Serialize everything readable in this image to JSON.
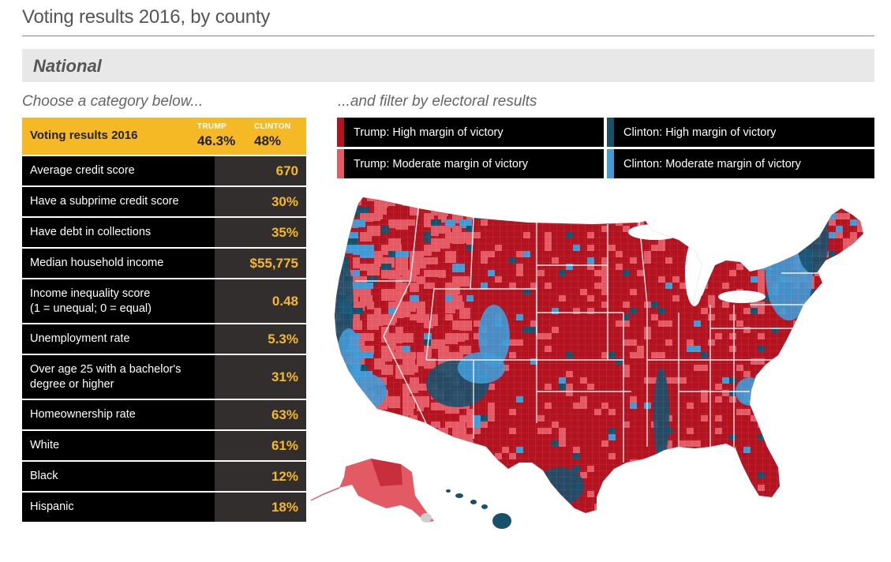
{
  "header": {
    "title": "Voting results 2016, by county",
    "section": "National",
    "left_prompt": "Choose a category below...",
    "right_prompt": "...and filter by electoral results"
  },
  "categories": {
    "selected": {
      "label": "Voting results 2016",
      "trump_label": "TRUMP",
      "trump_pct": "46.3%",
      "clinton_label": "CLINTON",
      "clinton_pct": "48%"
    },
    "rows": [
      {
        "label": "Average credit score",
        "value": "670"
      },
      {
        "label": "Have a subprime credit score",
        "value": "30%"
      },
      {
        "label": "Have debt in collections",
        "value": "35%"
      },
      {
        "label": "Median household income",
        "value": "$55,775"
      },
      {
        "label": "Income inequality score\n(1 = unequal; 0 = equal)",
        "value": "0.48"
      },
      {
        "label": "Unemployment rate",
        "value": "5.3%"
      },
      {
        "label": "Over age 25 with a bachelor's\ndegree or higher",
        "value": "31%"
      },
      {
        "label": "Homeownership rate",
        "value": "63%"
      },
      {
        "label": "White",
        "value": "61%"
      },
      {
        "label": "Black",
        "value": "12%"
      },
      {
        "label": "Hispanic",
        "value": "18%"
      }
    ]
  },
  "filters": [
    {
      "label": "Trump: High margin of victory",
      "color": "#b3121f"
    },
    {
      "label": "Clinton: High margin of victory",
      "color": "#17506b"
    },
    {
      "label": "Trump: Moderate margin of victory",
      "color": "#e45a64"
    },
    {
      "label": "Clinton: Moderate margin of victory",
      "color": "#3f9ad6"
    }
  ],
  "map": {
    "colors": {
      "trump_high": "#b3121f",
      "trump_moderate": "#e45a64",
      "clinton_high": "#17506b",
      "clinton_moderate": "#3f9ad6",
      "no_data": "#cfcfcf"
    }
  }
}
